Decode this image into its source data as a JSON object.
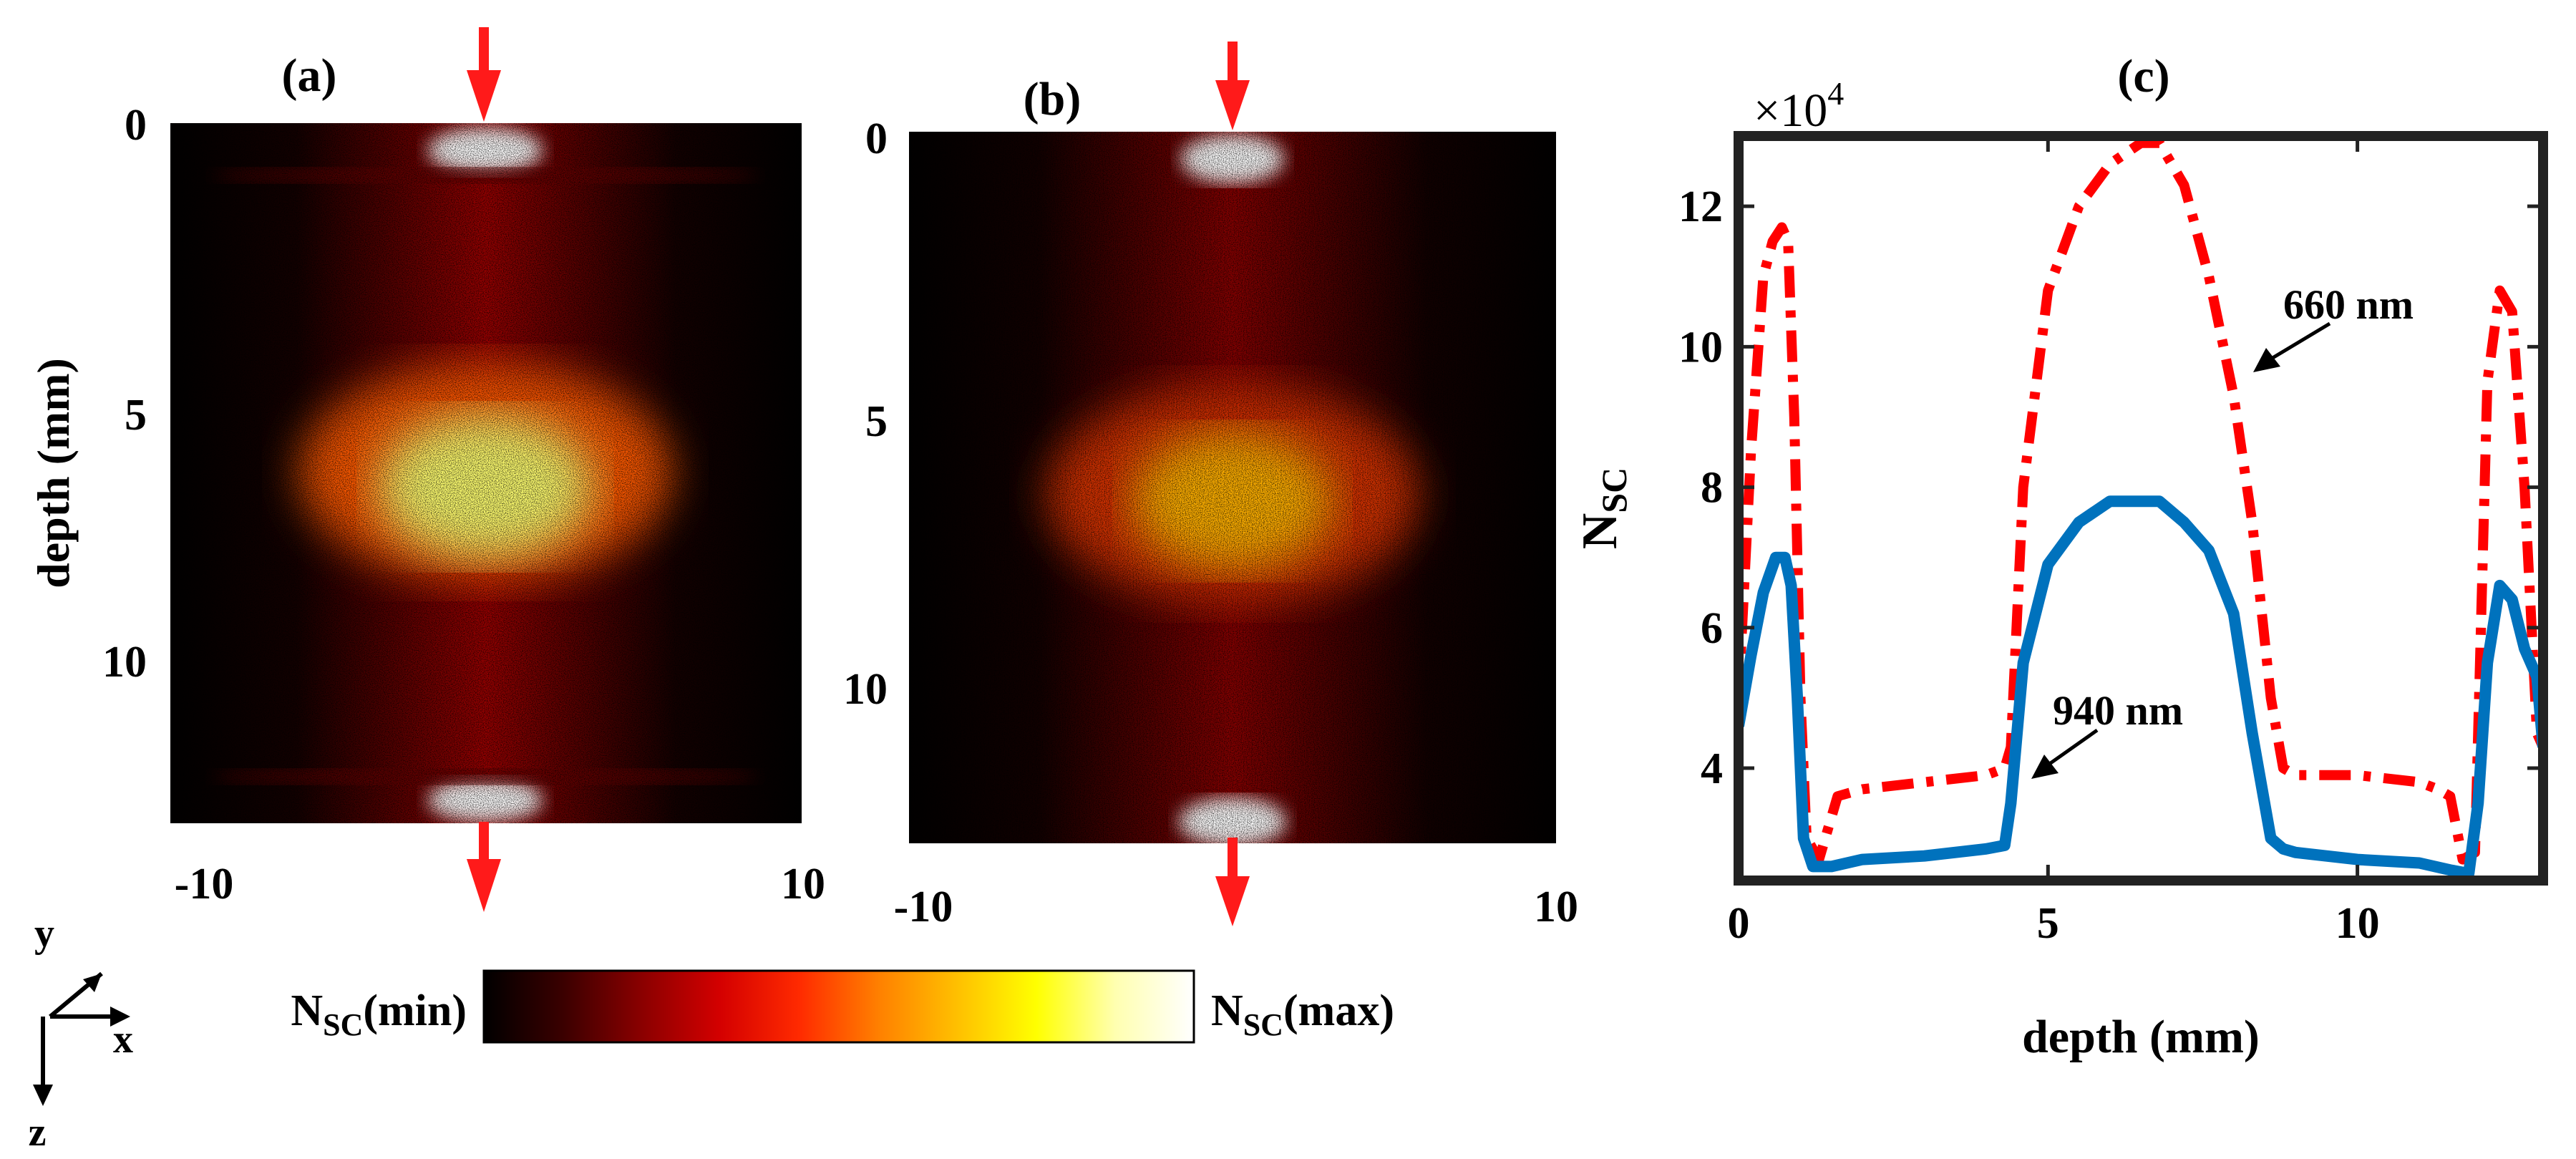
{
  "colors": {
    "arrow": "#ff1a1a",
    "line_660": "#ff0000",
    "line_940": "#0072bd",
    "axis": "#222222",
    "colormap": [
      "#000000",
      "#3a0000",
      "#8a0000",
      "#d40000",
      "#ff2a00",
      "#ff8000",
      "#ffc000",
      "#ffff00",
      "#ffffb0",
      "#ffffff"
    ]
  },
  "icons": {
    "beam_arrow": "down-arrow-icon",
    "axes_triad": "xyz-axes-icon"
  },
  "panels": {
    "a": {
      "label": "(a)",
      "ylabel": "depth (mm)",
      "xticks": [
        "-10",
        "10"
      ],
      "yticks": [
        "0",
        "5",
        "10"
      ]
    },
    "b": {
      "label": "(b)",
      "xticks": [
        "-10",
        "10"
      ],
      "yticks": [
        "0",
        "5",
        "10"
      ]
    }
  },
  "colorbar": {
    "min_base": "N",
    "min_sub": "SC",
    "min_suffix": "(min)",
    "max_base": "N",
    "max_sub": "SC",
    "max_suffix": "(max)"
  },
  "axes_triad": {
    "y": "y",
    "x": "x",
    "z": "z"
  },
  "chart_data": {
    "type": "line",
    "title": "(c)",
    "xlabel": "depth (mm)",
    "ylabel_base": "N",
    "ylabel_sub": "SC",
    "multiplier_base": "×10",
    "multiplier_exp": "4",
    "xlim": [
      0,
      13
    ],
    "ylim": [
      2.4,
      13.0
    ],
    "xticks": [
      0,
      5,
      10
    ],
    "xtick_labels": [
      "0",
      "5",
      "10"
    ],
    "yticks": [
      4,
      6,
      8,
      10,
      12
    ],
    "ytick_labels": [
      "4",
      "6",
      "8",
      "10",
      "12"
    ],
    "annotations": [
      {
        "text": "660 nm",
        "series": "660 nm"
      },
      {
        "text": "940 nm",
        "series": "940 nm"
      }
    ],
    "series": [
      {
        "name": "660 nm",
        "style": "dash-dot",
        "x": [
          0.0,
          0.2,
          0.4,
          0.55,
          0.7,
          0.8,
          0.9,
          1.0,
          1.1,
          1.3,
          1.6,
          2.0,
          3.0,
          4.0,
          4.3,
          4.4,
          4.6,
          5.0,
          5.5,
          6.0,
          6.5,
          6.8,
          7.2,
          7.6,
          8.0,
          8.3,
          8.6,
          8.8,
          9.0,
          10.0,
          11.0,
          11.3,
          11.5,
          11.7,
          11.9,
          12.1,
          12.3,
          12.5,
          12.7,
          12.9,
          13.0
        ],
        "y": [
          5.0,
          8.5,
          11.0,
          11.5,
          11.7,
          11.5,
          9.0,
          5.0,
          3.0,
          2.7,
          3.6,
          3.7,
          3.8,
          3.9,
          4.0,
          4.3,
          8.0,
          10.8,
          12.0,
          12.6,
          12.9,
          12.9,
          12.3,
          11.0,
          9.3,
          7.5,
          5.0,
          4.0,
          3.9,
          3.9,
          3.8,
          3.7,
          3.6,
          2.7,
          2.8,
          9.5,
          10.8,
          10.5,
          8.0,
          4.5,
          4.3
        ]
      },
      {
        "name": "940 nm",
        "style": "solid",
        "x": [
          0.0,
          0.2,
          0.4,
          0.6,
          0.75,
          0.85,
          0.95,
          1.05,
          1.2,
          1.5,
          2.0,
          3.0,
          4.0,
          4.3,
          4.4,
          4.6,
          5.0,
          5.5,
          6.0,
          6.5,
          6.8,
          7.2,
          7.6,
          8.0,
          8.3,
          8.6,
          8.8,
          9.0,
          10.0,
          11.0,
          11.5,
          11.8,
          11.95,
          12.1,
          12.3,
          12.5,
          12.7,
          12.9,
          13.0
        ],
        "y": [
          4.6,
          5.6,
          6.5,
          7.0,
          7.0,
          6.6,
          5.0,
          3.0,
          2.6,
          2.6,
          2.7,
          2.75,
          2.85,
          2.9,
          3.5,
          5.5,
          6.9,
          7.5,
          7.8,
          7.8,
          7.8,
          7.5,
          7.1,
          6.2,
          4.5,
          3.0,
          2.85,
          2.8,
          2.7,
          2.65,
          2.55,
          2.5,
          3.5,
          5.5,
          6.6,
          6.4,
          5.7,
          5.3,
          4.3
        ]
      }
    ]
  }
}
